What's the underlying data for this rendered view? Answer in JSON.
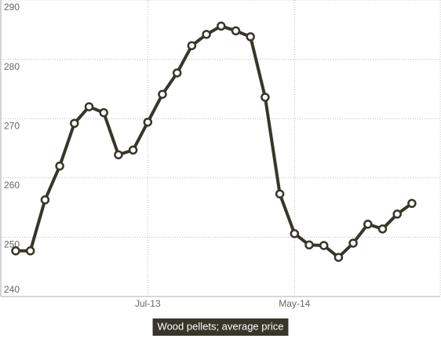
{
  "chart_data": {
    "type": "line",
    "categories": [
      null,
      null,
      null,
      null,
      null,
      null,
      null,
      null,
      null,
      "Jul-13",
      null,
      null,
      null,
      null,
      null,
      null,
      null,
      null,
      null,
      "May-14",
      null,
      null,
      null,
      null,
      null,
      null,
      null,
      null
    ],
    "series": [
      {
        "name": "Wood pellets; average price",
        "color": "#38352a",
        "values": [
          247.7,
          247.7,
          256.3,
          262.0,
          269.2,
          272.0,
          271.0,
          263.9,
          264.7,
          269.4,
          274.1,
          277.7,
          282.3,
          284.2,
          285.6,
          284.8,
          283.8,
          273.6,
          257.3,
          250.6,
          248.7,
          248.6,
          246.6,
          249.0,
          252.2,
          251.4,
          253.9,
          255.7
        ]
      }
    ],
    "ylim": [
      240,
      290
    ],
    "yticks": [
      240,
      250,
      260,
      270,
      280,
      290
    ],
    "grid": true
  }
}
